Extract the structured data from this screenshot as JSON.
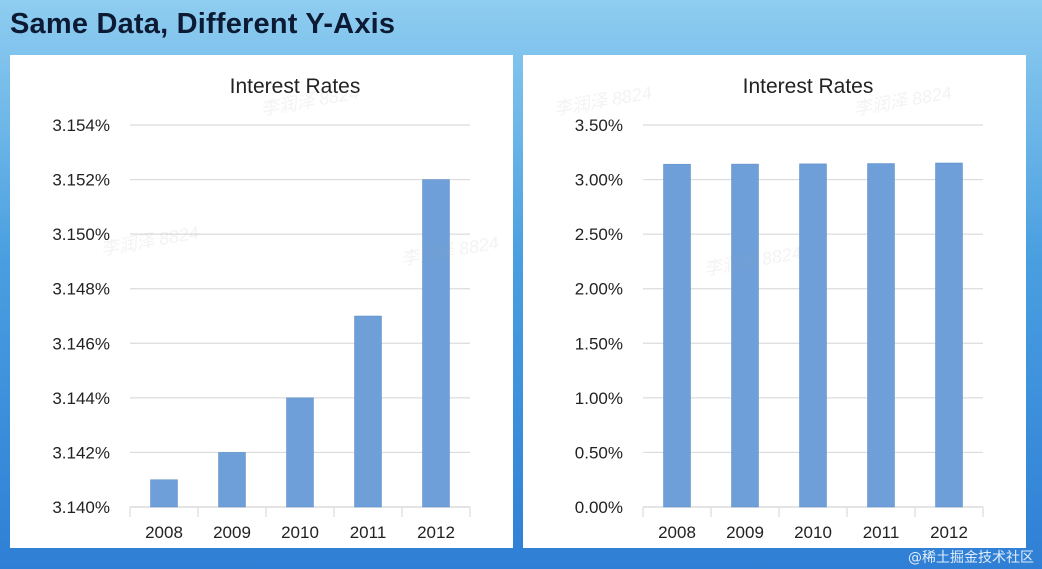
{
  "slide": {
    "title": "Same Data, Different Y-Axis"
  },
  "watermark": {
    "text": "李润泽 8824",
    "corner": "@稀土掘金技术社区"
  },
  "colors": {
    "bar": "#6e9fd8",
    "bar_edge": "#5b8cc8",
    "grid": "#dcdcdc",
    "text": "#222222"
  },
  "chart_data": [
    {
      "type": "bar",
      "title": "Interest Rates",
      "categories": [
        "2008",
        "2009",
        "2010",
        "2011",
        "2012"
      ],
      "values": [
        3.141,
        3.142,
        3.144,
        3.147,
        3.152
      ],
      "ylim": [
        3.14,
        3.154
      ],
      "yticks": [
        "3.140%",
        "3.142%",
        "3.144%",
        "3.146%",
        "3.148%",
        "3.150%",
        "3.152%",
        "3.154%"
      ],
      "ytick_values": [
        3.14,
        3.142,
        3.144,
        3.146,
        3.148,
        3.15,
        3.152,
        3.154
      ],
      "grid": true,
      "legend": "none"
    },
    {
      "type": "bar",
      "title": "Interest Rates",
      "categories": [
        "2008",
        "2009",
        "2010",
        "2011",
        "2012"
      ],
      "values": [
        3.141,
        3.142,
        3.144,
        3.147,
        3.152
      ],
      "ylim": [
        0,
        3.5
      ],
      "yticks": [
        "0.00%",
        "0.50%",
        "1.00%",
        "1.50%",
        "2.00%",
        "2.50%",
        "3.00%",
        "3.50%"
      ],
      "ytick_values": [
        0,
        0.5,
        1.0,
        1.5,
        2.0,
        2.5,
        3.0,
        3.5
      ],
      "grid": true,
      "legend": "none"
    }
  ]
}
